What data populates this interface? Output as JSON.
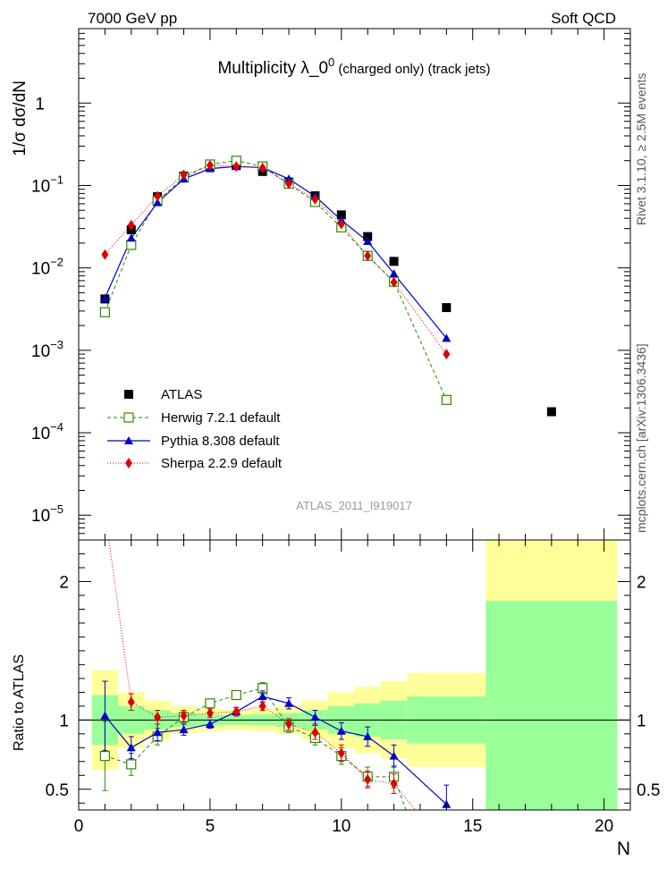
{
  "header": {
    "left": "7000 GeV pp",
    "right": "Soft QCD"
  },
  "side_labels": {
    "top": "Rivet 3.1.10, ≥ 2.5M events",
    "bottom": "mcplots.cern.ch [arXiv:1306.3436]"
  },
  "watermark": "ATLAS_2011_I919017",
  "colors": {
    "data": "#000000",
    "herwig": "#2c8a00",
    "pythia": "#0000cc",
    "sherpa": "#e00000",
    "band_inner": "#99ff99",
    "band_outer": "#ffff99"
  },
  "chart_data": [
    {
      "type": "scatter",
      "title": "Multiplicity  λ_0",
      "title_sup": "0",
      "title_suffix": " (charged only) (track jets)",
      "ylabel": "1/σ dσ/dN",
      "yscale": "log",
      "xlim": [
        0,
        21
      ],
      "ylim": [
        5e-06,
        8
      ],
      "yticks": [
        {
          "v": 1e-05,
          "base": "10",
          "exp": "−5"
        },
        {
          "v": 0.0001,
          "base": "10",
          "exp": "−4"
        },
        {
          "v": 0.001,
          "base": "10",
          "exp": "−3"
        },
        {
          "v": 0.01,
          "base": "10",
          "exp": "−2"
        },
        {
          "v": 0.1,
          "base": "10",
          "exp": "−1"
        },
        {
          "v": 1,
          "base": "1",
          "exp": ""
        }
      ],
      "legend_position": "lower-left",
      "series": [
        {
          "key": "atlas",
          "name": "ATLAS",
          "x": [
            1,
            2,
            3,
            4,
            5,
            6,
            7,
            8,
            9,
            10,
            11,
            12,
            14,
            18
          ],
          "y": [
            0.0042,
            0.029,
            0.073,
            0.13,
            0.17,
            0.175,
            0.148,
            0.11,
            0.075,
            0.044,
            0.024,
            0.012,
            0.0033,
            0.00018
          ]
        },
        {
          "key": "herwig",
          "name": "Herwig 7.2.1 default",
          "x": [
            1,
            2,
            3,
            4,
            5,
            6,
            7,
            8,
            9,
            10,
            11,
            12,
            14
          ],
          "y": [
            0.0029,
            0.019,
            0.065,
            0.125,
            0.18,
            0.2,
            0.17,
            0.105,
            0.063,
            0.031,
            0.014,
            0.0068,
            0.00025
          ]
        },
        {
          "key": "pythia",
          "name": "Pythia 8.308 default",
          "x": [
            1,
            2,
            3,
            4,
            5,
            6,
            7,
            8,
            9,
            10,
            11,
            12,
            14
          ],
          "y": [
            0.0043,
            0.023,
            0.062,
            0.12,
            0.16,
            0.17,
            0.165,
            0.12,
            0.074,
            0.038,
            0.021,
            0.0085,
            0.0014
          ]
        },
        {
          "key": "sherpa",
          "name": "Sherpa 2.2.9 default",
          "x": [
            1,
            2,
            3,
            4,
            5,
            6,
            7,
            8,
            9,
            10,
            11,
            12,
            14
          ],
          "y": [
            0.0145,
            0.033,
            0.074,
            0.135,
            0.175,
            0.17,
            0.163,
            0.105,
            0.068,
            0.034,
            0.014,
            0.0067,
            0.0009
          ]
        }
      ]
    },
    {
      "type": "scatter",
      "ylabel": "Ratio to ATLAS",
      "xlabel": "N",
      "xlim": [
        0,
        21
      ],
      "ylim": [
        0.35,
        2.3
      ],
      "xticks": [
        0,
        5,
        10,
        15,
        20
      ],
      "yticks": [
        0.5,
        1,
        2
      ],
      "bands": [
        {
          "x0": 0.5,
          "x1": 1.5,
          "inner": 0.18,
          "outer": 0.36
        },
        {
          "x0": 1.5,
          "x1": 2.5,
          "inner": 0.1,
          "outer": 0.2
        },
        {
          "x0": 2.5,
          "x1": 3.5,
          "inner": 0.07,
          "outer": 0.14
        },
        {
          "x0": 3.5,
          "x1": 4.5,
          "inner": 0.05,
          "outer": 0.1
        },
        {
          "x0": 4.5,
          "x1": 5.5,
          "inner": 0.04,
          "outer": 0.08
        },
        {
          "x0": 5.5,
          "x1": 6.5,
          "inner": 0.035,
          "outer": 0.07
        },
        {
          "x0": 6.5,
          "x1": 7.5,
          "inner": 0.04,
          "outer": 0.08
        },
        {
          "x0": 7.5,
          "x1": 8.5,
          "inner": 0.05,
          "outer": 0.1
        },
        {
          "x0": 8.5,
          "x1": 9.5,
          "inner": 0.07,
          "outer": 0.14
        },
        {
          "x0": 9.5,
          "x1": 10.5,
          "inner": 0.1,
          "outer": 0.2
        },
        {
          "x0": 10.5,
          "x1": 11.5,
          "inner": 0.12,
          "outer": 0.24
        },
        {
          "x0": 11.5,
          "x1": 12.5,
          "inner": 0.14,
          "outer": 0.28
        },
        {
          "x0": 12.5,
          "x1": 15.5,
          "inner": 0.17,
          "outer": 0.34
        },
        {
          "x0": 15.5,
          "x1": 20.5,
          "inner": 0.86,
          "outer": 1.7
        }
      ],
      "series": [
        {
          "key": "herwig",
          "x": [
            1,
            2,
            3,
            4,
            5,
            6,
            7,
            8,
            9,
            10,
            11,
            12,
            12.5
          ],
          "y": [
            0.74,
            0.68,
            0.88,
            1.02,
            1.12,
            1.18,
            1.23,
            0.95,
            0.87,
            0.74,
            0.59,
            0.59,
            0.33
          ],
          "err": [
            0.25,
            0.08,
            0.06,
            0.04,
            0.03,
            0.03,
            0.04,
            0.04,
            0.05,
            0.06,
            0.07,
            0.08,
            0
          ]
        },
        {
          "key": "pythia",
          "x": [
            1,
            2,
            3,
            4,
            5,
            6,
            7,
            8,
            9,
            10,
            11,
            12,
            14
          ],
          "y": [
            1.03,
            0.8,
            0.91,
            0.93,
            0.97,
            1.06,
            1.17,
            1.12,
            1.02,
            0.92,
            0.88,
            0.74,
            0.39
          ],
          "err": [
            0.25,
            0.08,
            0.06,
            0.04,
            0.03,
            0.03,
            0.04,
            0.04,
            0.05,
            0.06,
            0.07,
            0.08,
            0.14
          ]
        },
        {
          "key": "sherpa",
          "x": [
            1.15,
            2,
            3,
            4,
            5,
            6,
            7,
            8,
            9,
            10,
            11,
            12,
            12.9
          ],
          "y": [
            2.3,
            1.13,
            1.02,
            1.03,
            1.05,
            1.06,
            1.1,
            0.97,
            0.91,
            0.76,
            0.57,
            0.54,
            0.33
          ],
          "err": [
            0,
            0.06,
            0.05,
            0.04,
            0.03,
            0.03,
            0.03,
            0.04,
            0.05,
            0.06,
            0.06,
            0.07,
            0
          ]
        }
      ]
    }
  ]
}
